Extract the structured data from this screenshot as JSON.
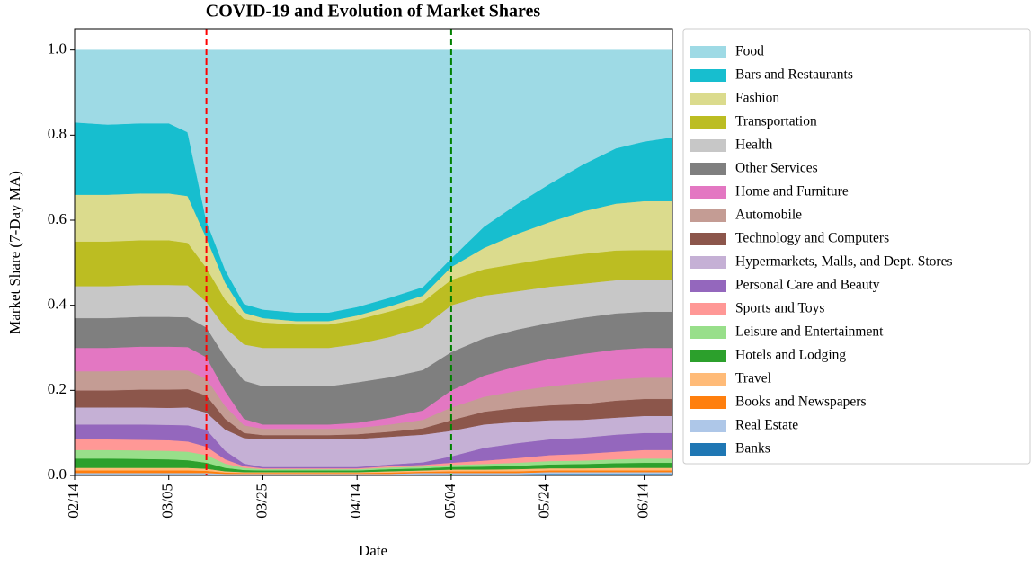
{
  "chart_data": {
    "type": "stacked_area",
    "title": "COVID-19 and Evolution of Market Shares",
    "x_label": "Date",
    "y_label": "Market Share (7-Day MA)",
    "x": [
      "02/14",
      "02/21",
      "02/28",
      "03/05",
      "03/09",
      "03/13",
      "03/17",
      "03/21",
      "03/25",
      "04/01",
      "04/08",
      "04/14",
      "04/21",
      "04/28",
      "05/04",
      "05/11",
      "05/18",
      "05/25",
      "06/01",
      "06/08",
      "06/14",
      "06/20"
    ],
    "xlim": [
      "02/14",
      "06/20"
    ],
    "xticks": [
      "02/14",
      "03/05",
      "03/25",
      "04/14",
      "05/04",
      "05/24",
      "06/14"
    ],
    "ylim": [
      0,
      1.05
    ],
    "yticks": [
      {
        "value": 0,
        "label": "0.0"
      },
      {
        "value": 0.2,
        "label": "0.2"
      },
      {
        "value": 0.4,
        "label": "0.4"
      },
      {
        "value": 0.6,
        "label": "0.6"
      },
      {
        "value": 0.8,
        "label": "0.8"
      },
      {
        "value": 1,
        "label": "1.0"
      }
    ],
    "vlines": [
      {
        "x": "03/13",
        "color": "#ff0000"
      },
      {
        "x": "05/04",
        "color": "#008000"
      }
    ],
    "legend_position": "outside right",
    "series": [
      {
        "name": "Food",
        "color": "#9edae5",
        "values": [
          0.17,
          0.175,
          0.172,
          0.172,
          0.193,
          0.402,
          0.517,
          0.597,
          0.61,
          0.617,
          0.617,
          0.604,
          0.582,
          0.557,
          0.49,
          0.415,
          0.362,
          0.314,
          0.269,
          0.231,
          0.215,
          0.205
        ]
      },
      {
        "name": "Bars and Restaurants",
        "color": "#17becf",
        "values": [
          0.17,
          0.165,
          0.165,
          0.165,
          0.15,
          0.04,
          0.03,
          0.02,
          0.02,
          0.02,
          0.02,
          0.02,
          0.02,
          0.02,
          0.02,
          0.05,
          0.07,
          0.09,
          0.11,
          0.13,
          0.14,
          0.15
        ]
      },
      {
        "name": "Fashion",
        "color": "#dbdb8d",
        "values": [
          0.11,
          0.11,
          0.11,
          0.11,
          0.11,
          0.07,
          0.04,
          0.015,
          0.01,
          0.008,
          0.008,
          0.01,
          0.012,
          0.015,
          0.03,
          0.05,
          0.07,
          0.085,
          0.1,
          0.11,
          0.115,
          0.115
        ]
      },
      {
        "name": "Transportation",
        "color": "#bcbd22",
        "values": [
          0.105,
          0.105,
          0.105,
          0.105,
          0.1,
          0.08,
          0.065,
          0.06,
          0.06,
          0.055,
          0.055,
          0.057,
          0.06,
          0.06,
          0.06,
          0.062,
          0.065,
          0.067,
          0.07,
          0.07,
          0.07,
          0.07
        ]
      },
      {
        "name": "Health",
        "color": "#c7c7c7",
        "values": [
          0.075,
          0.075,
          0.075,
          0.075,
          0.075,
          0.06,
          0.07,
          0.085,
          0.09,
          0.09,
          0.09,
          0.09,
          0.095,
          0.1,
          0.11,
          0.1,
          0.09,
          0.085,
          0.08,
          0.078,
          0.075,
          0.075
        ]
      },
      {
        "name": "Other Services",
        "color": "#7f7f7f",
        "values": [
          0.07,
          0.07,
          0.07,
          0.07,
          0.07,
          0.07,
          0.08,
          0.09,
          0.09,
          0.09,
          0.09,
          0.095,
          0.095,
          0.095,
          0.09,
          0.088,
          0.086,
          0.085,
          0.085,
          0.085,
          0.085,
          0.085
        ]
      },
      {
        "name": "Home and Furniture",
        "color": "#e377c2",
        "values": [
          0.055,
          0.055,
          0.056,
          0.056,
          0.055,
          0.05,
          0.035,
          0.015,
          0.01,
          0.01,
          0.01,
          0.012,
          0.016,
          0.022,
          0.04,
          0.05,
          0.058,
          0.064,
          0.068,
          0.07,
          0.07,
          0.07
        ]
      },
      {
        "name": "Automobile",
        "color": "#c49c94",
        "values": [
          0.045,
          0.045,
          0.045,
          0.045,
          0.044,
          0.04,
          0.03,
          0.018,
          0.015,
          0.015,
          0.015,
          0.015,
          0.017,
          0.02,
          0.03,
          0.035,
          0.04,
          0.045,
          0.05,
          0.05,
          0.05,
          0.05
        ]
      },
      {
        "name": "Technology and Computers",
        "color": "#8c564b",
        "values": [
          0.04,
          0.04,
          0.042,
          0.043,
          0.043,
          0.04,
          0.025,
          0.012,
          0.01,
          0.01,
          0.01,
          0.011,
          0.012,
          0.015,
          0.025,
          0.03,
          0.033,
          0.035,
          0.037,
          0.04,
          0.04,
          0.04
        ]
      },
      {
        "name": "Hypermarkets, Malls, and Dept. Stores",
        "color": "#c5b0d5",
        "values": [
          0.04,
          0.04,
          0.04,
          0.04,
          0.042,
          0.04,
          0.05,
          0.06,
          0.065,
          0.065,
          0.065,
          0.066,
          0.065,
          0.065,
          0.06,
          0.055,
          0.05,
          0.045,
          0.042,
          0.04,
          0.04,
          0.04
        ]
      },
      {
        "name": "Personal Care and Beauty",
        "color": "#9467bd",
        "values": [
          0.035,
          0.035,
          0.036,
          0.036,
          0.038,
          0.04,
          0.02,
          0.006,
          0.003,
          0.003,
          0.003,
          0.003,
          0.004,
          0.006,
          0.015,
          0.03,
          0.035,
          0.037,
          0.038,
          0.04,
          0.04,
          0.04
        ]
      },
      {
        "name": "Sports and Toys",
        "color": "#ff9896",
        "values": [
          0.025,
          0.025,
          0.025,
          0.025,
          0.024,
          0.02,
          0.01,
          0.004,
          0.002,
          0.002,
          0.002,
          0.002,
          0.003,
          0.004,
          0.005,
          0.008,
          0.011,
          0.014,
          0.016,
          0.018,
          0.02,
          0.02
        ]
      },
      {
        "name": "Leisure and Entertainment",
        "color": "#98df8a",
        "values": [
          0.02,
          0.02,
          0.02,
          0.02,
          0.02,
          0.018,
          0.01,
          0.005,
          0.003,
          0.003,
          0.003,
          0.003,
          0.004,
          0.004,
          0.005,
          0.006,
          0.007,
          0.008,
          0.008,
          0.009,
          0.01,
          0.01
        ]
      },
      {
        "name": "Hotels and Lodging",
        "color": "#2ca02c",
        "values": [
          0.022,
          0.022,
          0.021,
          0.02,
          0.018,
          0.014,
          0.008,
          0.005,
          0.004,
          0.004,
          0.004,
          0.004,
          0.005,
          0.005,
          0.006,
          0.007,
          0.008,
          0.009,
          0.01,
          0.011,
          0.012,
          0.012
        ]
      },
      {
        "name": "Travel",
        "color": "#ffbb78",
        "values": [
          0.006,
          0.006,
          0.006,
          0.006,
          0.006,
          0.005,
          0.003,
          0.002,
          0.002,
          0.002,
          0.002,
          0.002,
          0.003,
          0.003,
          0.004,
          0.004,
          0.005,
          0.005,
          0.005,
          0.006,
          0.006,
          0.006
        ]
      },
      {
        "name": "Books and Newspapers",
        "color": "#ff7f0e",
        "values": [
          0.006,
          0.006,
          0.006,
          0.006,
          0.006,
          0.005,
          0.003,
          0.002,
          0.002,
          0.002,
          0.002,
          0.002,
          0.003,
          0.003,
          0.004,
          0.004,
          0.004,
          0.004,
          0.004,
          0.004,
          0.004,
          0.004
        ]
      },
      {
        "name": "Real Estate",
        "color": "#aec7e8",
        "values": [
          0.003,
          0.003,
          0.003,
          0.003,
          0.003,
          0.003,
          0.002,
          0.002,
          0.002,
          0.002,
          0.002,
          0.002,
          0.002,
          0.003,
          0.003,
          0.003,
          0.003,
          0.004,
          0.004,
          0.004,
          0.004,
          0.004
        ]
      },
      {
        "name": "Banks",
        "color": "#1f77b4",
        "values": [
          0.003,
          0.003,
          0.003,
          0.003,
          0.003,
          0.003,
          0.002,
          0.002,
          0.002,
          0.002,
          0.002,
          0.002,
          0.002,
          0.003,
          0.003,
          0.003,
          0.003,
          0.004,
          0.004,
          0.004,
          0.004,
          0.004
        ]
      }
    ]
  }
}
